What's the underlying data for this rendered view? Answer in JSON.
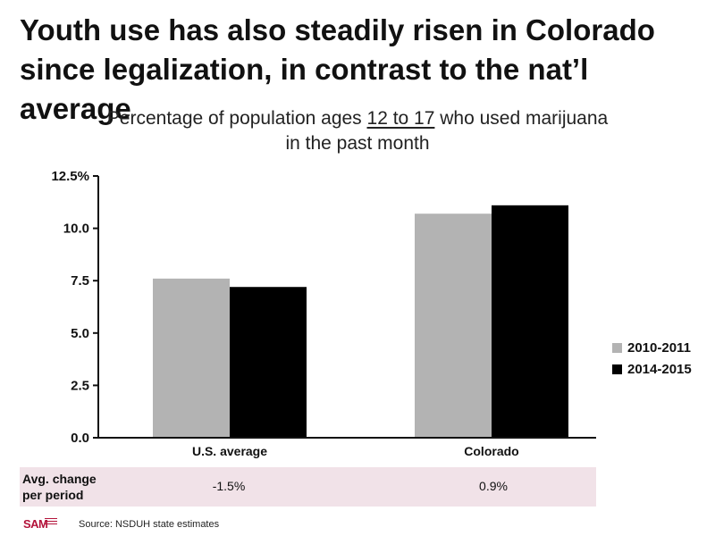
{
  "headline": "Youth use has also steadily risen in Colorado\nsince legalization, in contrast to the nat’l average",
  "subtitle": {
    "pre": "Percentage of population ages ",
    "underlined": "12 to 17",
    "post": " who used marijuana in the past month"
  },
  "colors": {
    "series_2010": "#b3b3b3",
    "series_2014": "#000000",
    "axis": "#111111",
    "change_row_bg": "#f1e2e8"
  },
  "chart_data": {
    "type": "bar",
    "categories": [
      "U.S. average",
      "Colorado"
    ],
    "series": [
      {
        "name": "2010-2011",
        "values": [
          7.6,
          10.7
        ]
      },
      {
        "name": "2014-2015",
        "values": [
          7.2,
          11.1
        ]
      }
    ],
    "ylim": [
      0,
      12.5
    ],
    "yticks": [
      0,
      2.5,
      5,
      7.5,
      10,
      12.5
    ],
    "ytick_labels": [
      "0.0",
      "2.5",
      "5.0",
      "7.5",
      "10.0",
      "12.5%"
    ],
    "legend_position": "right",
    "grid": false
  },
  "change_row": {
    "label": "Avg. change\nper period",
    "values": [
      "-1.5%",
      "0.9%"
    ]
  },
  "footer": {
    "logo_text": "SAM",
    "source": "Source: NSDUH state estimates"
  }
}
